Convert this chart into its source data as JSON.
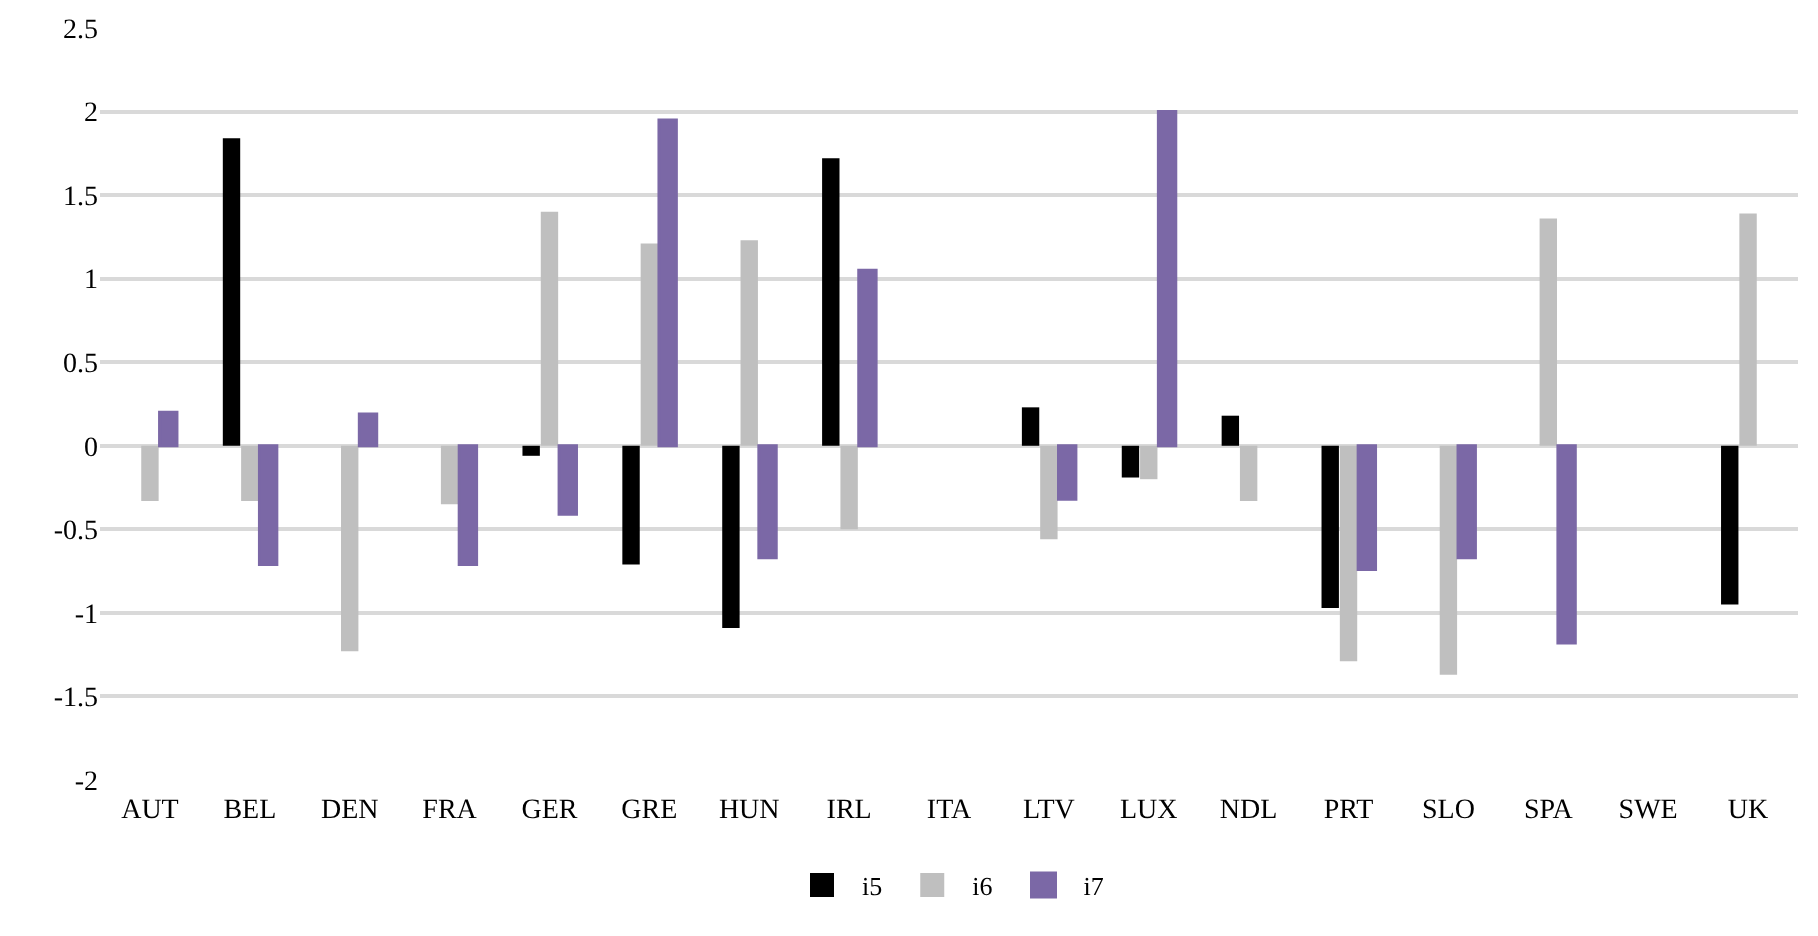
{
  "chart_data": {
    "type": "bar",
    "categories": [
      "AUT",
      "BEL",
      "DEN",
      "FRA",
      "GER",
      "GRE",
      "HUN",
      "IRL",
      "ITA",
      "LTV",
      "LUX",
      "NDL",
      "PRT",
      "SLO",
      "SPA",
      "SWE",
      "UK"
    ],
    "series": [
      {
        "name": "i5",
        "color": "#000000",
        "values": [
          null,
          1.84,
          null,
          null,
          -0.06,
          -0.71,
          -1.09,
          1.72,
          null,
          0.23,
          -0.19,
          0.18,
          -0.97,
          null,
          null,
          null,
          -0.95
        ]
      },
      {
        "name": "i6",
        "color": "#bfbfbf",
        "values": [
          -0.33,
          -0.33,
          -1.23,
          -0.35,
          1.4,
          1.21,
          1.23,
          -0.5,
          null,
          -0.56,
          -0.2,
          -0.33,
          -1.29,
          -1.37,
          1.36,
          null,
          1.39
        ]
      },
      {
        "name": "i7",
        "color": "#7b68a6",
        "values": [
          0.2,
          -0.71,
          0.19,
          -0.71,
          -0.41,
          1.95,
          -0.67,
          1.05,
          null,
          -0.32,
          2.0,
          null,
          -0.74,
          -0.67,
          -1.18,
          null,
          null
        ]
      }
    ],
    "ylim": [
      -2,
      2.5
    ],
    "yticks": [
      -2,
      -1.5,
      -1,
      -0.5,
      0,
      0.5,
      1,
      1.5,
      2,
      2.5
    ],
    "grid": "y",
    "legend": "bottom"
  }
}
